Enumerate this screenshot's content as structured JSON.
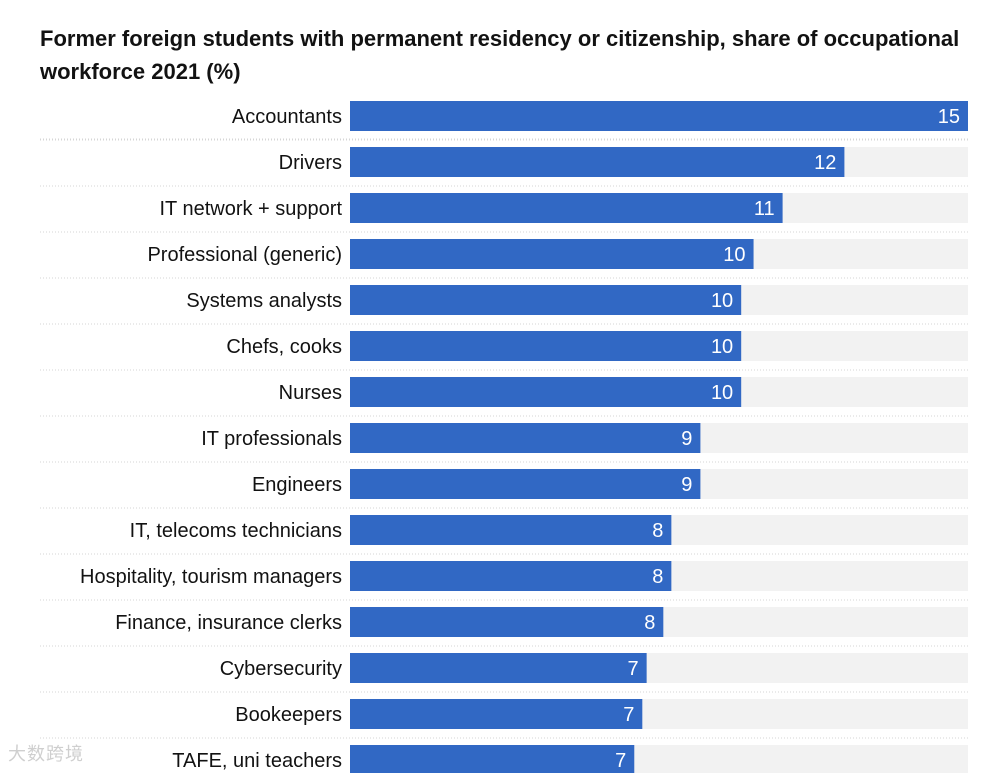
{
  "chart_data": {
    "type": "bar",
    "orientation": "horizontal",
    "title": "Former foreign students with permanent residency or citizenship, share of occupational workforce 2021 (%)",
    "categories": [
      "Accountants",
      "Drivers",
      "IT network + support",
      "Professional (generic)",
      "Systems analysts",
      "Chefs, cooks",
      "Nurses",
      "IT professionals",
      "Engineers",
      "IT, telecoms technicians",
      "Hospitality, tourism managers",
      "Finance, insurance clerks",
      "Cybersecurity",
      "Bookeepers",
      "TAFE, uni teachers"
    ],
    "values": [
      15,
      12,
      11,
      10,
      10,
      10,
      10,
      9,
      9,
      8,
      8,
      8,
      7,
      7,
      7
    ],
    "fractions": [
      1.0,
      0.8,
      0.7,
      0.653,
      0.633,
      0.633,
      0.633,
      0.567,
      0.567,
      0.52,
      0.52,
      0.507,
      0.48,
      0.473,
      0.46
    ],
    "xlim": [
      0,
      15
    ],
    "bar_color": "#3168c4",
    "track_color": "#f2f2f2",
    "grid": false,
    "legend": "none"
  },
  "watermark": "大数跨境"
}
